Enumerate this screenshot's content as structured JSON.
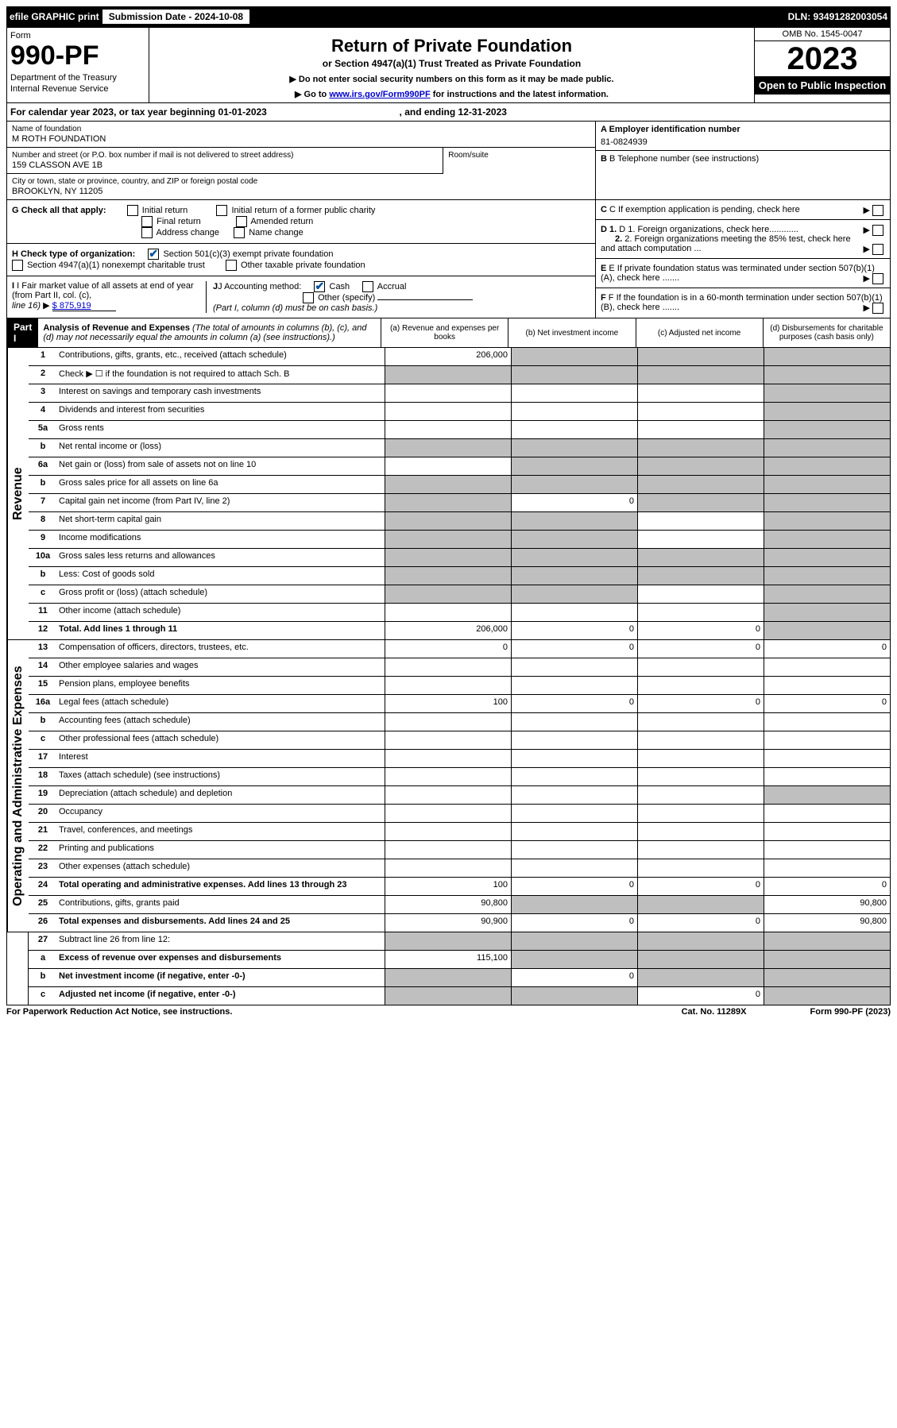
{
  "topbar": {
    "efile": "efile GRAPHIC print",
    "submission_label": "Submission Date - 2024-10-08",
    "dln": "DLN: 93491282003054"
  },
  "header": {
    "form_label": "Form",
    "form_number": "990-PF",
    "dept1": "Department of the Treasury",
    "dept2": "Internal Revenue Service",
    "title": "Return of Private Foundation",
    "subtitle": "or Section 4947(a)(1) Trust Treated as Private Foundation",
    "instr1": "▶ Do not enter social security numbers on this form as it may be made public.",
    "instr2_pre": "▶ Go to ",
    "instr2_link": "www.irs.gov/Form990PF",
    "instr2_post": " for instructions and the latest information.",
    "omb": "OMB No. 1545-0047",
    "year": "2023",
    "open": "Open to Public Inspection"
  },
  "tax_year": {
    "pre": "For calendar year 2023, or tax year beginning ",
    "begin": "01-01-2023",
    "mid": " , and ending ",
    "end": "12-31-2023"
  },
  "foundation": {
    "name_label": "Name of foundation",
    "name": "M ROTH FOUNDATION",
    "addr_label": "Number and street (or P.O. box number if mail is not delivered to street address)",
    "addr": "159 CLASSON AVE 1B",
    "room_label": "Room/suite",
    "city_label": "City or town, state or province, country, and ZIP or foreign postal code",
    "city": "BROOKLYN, NY  11205",
    "a_label": "A Employer identification number",
    "a_val": "81-0824939",
    "b_label": "B Telephone number (see instructions)",
    "c_label": "C If exemption application is pending, check here",
    "d1_label": "D 1. Foreign organizations, check here............",
    "d2_label": "2. Foreign organizations meeting the 85% test, check here and attach computation ...",
    "e_label": "E  If private foundation status was terminated under section 507(b)(1)(A), check here .......",
    "f_label": "F  If the foundation is in a 60-month termination under section 507(b)(1)(B), check here ......."
  },
  "g": {
    "label": "G Check all that apply:",
    "o1": "Initial return",
    "o2": "Final return",
    "o3": "Address change",
    "o4": "Initial return of a former public charity",
    "o5": "Amended return",
    "o6": "Name change"
  },
  "h": {
    "label": "H Check type of organization:",
    "o1": "Section 501(c)(3) exempt private foundation",
    "o2": "Section 4947(a)(1) nonexempt charitable trust",
    "o3": "Other taxable private foundation"
  },
  "i": {
    "label1": "I Fair market value of all assets at end of year (from Part II, col. (c),",
    "label2": "line 16)",
    "arrow": "▶",
    "val": "$  875,919"
  },
  "j": {
    "label": "J Accounting method:",
    "cash": "Cash",
    "accrual": "Accrual",
    "other": "Other (specify)",
    "note": "(Part I, column (d) must be on cash basis.)"
  },
  "part1": {
    "label": "Part I",
    "title": "Analysis of Revenue and Expenses",
    "desc": " (The total of amounts in columns (b), (c), and (d) may not necessarily equal the amounts in column (a) (see instructions).)",
    "col_a": "(a)    Revenue and expenses per books",
    "col_b": "(b)    Net investment income",
    "col_c": "(c)   Adjusted net income",
    "col_d": "(d)   Disbursements for charitable purposes (cash basis only)"
  },
  "sections": {
    "revenue": "Revenue",
    "operating": "Operating and Administrative Expenses"
  },
  "rows": [
    {
      "n": "1",
      "d": "S",
      "a": "206,000",
      "b": "S",
      "c": "S"
    },
    {
      "n": "2",
      "d": "S",
      "a": "S",
      "b": "S",
      "c": "S",
      "dots": true
    },
    {
      "n": "3",
      "d": "S",
      "a": "",
      "b": "",
      "c": ""
    },
    {
      "n": "4",
      "d": "S",
      "a": "",
      "b": "",
      "c": "",
      "dots": true
    },
    {
      "n": "5a",
      "d": "S",
      "a": "",
      "b": "",
      "c": "",
      "dots": true
    },
    {
      "n": "b",
      "d": "S",
      "a": "S",
      "b": "S",
      "c": "S"
    },
    {
      "n": "6a",
      "d": "S",
      "a": "",
      "b": "S",
      "c": "S"
    },
    {
      "n": "b",
      "d": "S",
      "a": "S",
      "b": "S",
      "c": "S"
    },
    {
      "n": "7",
      "d": "S",
      "a": "S",
      "b": "0",
      "c": "S",
      "dots": true
    },
    {
      "n": "8",
      "d": "S",
      "a": "S",
      "b": "S",
      "c": "",
      "dots": true
    },
    {
      "n": "9",
      "d": "S",
      "a": "S",
      "b": "S",
      "c": "",
      "dots": true
    },
    {
      "n": "10a",
      "d": "S",
      "a": "S",
      "b": "S",
      "c": "S"
    },
    {
      "n": "b",
      "d": "S",
      "a": "S",
      "b": "S",
      "c": "S",
      "dots": true
    },
    {
      "n": "c",
      "d": "S",
      "a": "S",
      "b": "S",
      "c": "",
      "dots": true
    },
    {
      "n": "11",
      "d": "S",
      "a": "",
      "b": "",
      "c": "",
      "dots": true
    },
    {
      "n": "12",
      "d": "S",
      "a": "206,000",
      "b": "0",
      "c": "0",
      "bold": true,
      "dots": true
    }
  ],
  "exp_rows": [
    {
      "n": "13",
      "d": "0",
      "a": "0",
      "b": "0",
      "c": "0"
    },
    {
      "n": "14",
      "d": "",
      "a": "",
      "b": "",
      "c": "",
      "dots": true
    },
    {
      "n": "15",
      "d": "",
      "a": "",
      "b": "",
      "c": "",
      "dots": true
    },
    {
      "n": "16a",
      "d": "0",
      "a": "100",
      "b": "0",
      "c": "0",
      "dots": true
    },
    {
      "n": "b",
      "d": "",
      "a": "",
      "b": "",
      "c": "",
      "dots": true
    },
    {
      "n": "c",
      "d": "",
      "a": "",
      "b": "",
      "c": "",
      "dots": true
    },
    {
      "n": "17",
      "d": "",
      "a": "",
      "b": "",
      "c": "",
      "dots": true
    },
    {
      "n": "18",
      "d": "",
      "a": "",
      "b": "",
      "c": "",
      "dots": true
    },
    {
      "n": "19",
      "d": "S",
      "a": "",
      "b": "",
      "c": "",
      "dots": true
    },
    {
      "n": "20",
      "d": "",
      "a": "",
      "b": "",
      "c": "",
      "dots": true
    },
    {
      "n": "21",
      "d": "",
      "a": "",
      "b": "",
      "c": "",
      "dots": true
    },
    {
      "n": "22",
      "d": "",
      "a": "",
      "b": "",
      "c": "",
      "dots": true
    },
    {
      "n": "23",
      "d": "",
      "a": "",
      "b": "",
      "c": "",
      "dots": true
    },
    {
      "n": "24",
      "d": "0",
      "a": "100",
      "b": "0",
      "c": "0",
      "bold": true,
      "dots": true
    },
    {
      "n": "25",
      "d": "90,800",
      "a": "90,800",
      "b": "S",
      "c": "S",
      "dots": true
    },
    {
      "n": "26",
      "d": "90,800",
      "a": "90,900",
      "b": "0",
      "c": "0",
      "bold": true
    }
  ],
  "net_rows": [
    {
      "n": "27",
      "d": "S",
      "a": "S",
      "b": "S",
      "c": "S"
    },
    {
      "n": "a",
      "d": "S",
      "a": "115,100",
      "b": "S",
      "c": "S",
      "bold": true
    },
    {
      "n": "b",
      "d": "S",
      "a": "S",
      "b": "0",
      "c": "S",
      "bold": true
    },
    {
      "n": "c",
      "d": "S",
      "a": "S",
      "b": "S",
      "c": "0",
      "bold": true,
      "dots": true
    }
  ],
  "footer": {
    "left": "For Paperwork Reduction Act Notice, see instructions.",
    "mid": "Cat. No. 11289X",
    "right": "Form 990-PF (2023)"
  }
}
